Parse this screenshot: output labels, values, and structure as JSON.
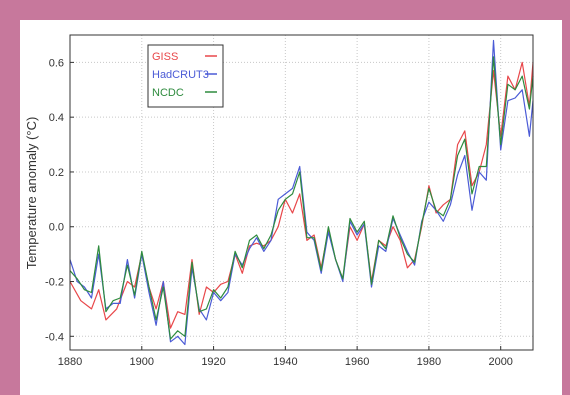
{
  "chart_data": {
    "type": "line",
    "title": "",
    "xlabel": "",
    "ylabel": "Temperature anomaly (°C)",
    "xlim": [
      1880,
      2009
    ],
    "ylim": [
      -0.45,
      0.7
    ],
    "xticks": [
      1880,
      1900,
      1920,
      1940,
      1960,
      1980,
      2000
    ],
    "yticks": [
      -0.4,
      -0.2,
      0.0,
      0.2,
      0.4,
      0.6
    ],
    "ytick_labels": [
      "-0.4",
      "-0.2",
      "0.0",
      "0.2",
      "0.4",
      "0.6"
    ],
    "grid": true,
    "legend_position": "top-left",
    "series": [
      {
        "name": "GISS",
        "color": "#e8474a",
        "x": [
          1880,
          1883,
          1886,
          1888,
          1890,
          1893,
          1896,
          1898,
          1900,
          1902,
          1904,
          1906,
          1908,
          1910,
          1912,
          1914,
          1916,
          1918,
          1920,
          1922,
          1924,
          1926,
          1928,
          1930,
          1932,
          1934,
          1936,
          1938,
          1940,
          1942,
          1944,
          1946,
          1948,
          1950,
          1952,
          1954,
          1956,
          1958,
          1960,
          1962,
          1964,
          1966,
          1968,
          1970,
          1972,
          1974,
          1976,
          1978,
          1980,
          1982,
          1984,
          1986,
          1988,
          1990,
          1992,
          1994,
          1996,
          1998,
          2000,
          2002,
          2004,
          2006,
          2008,
          2009
        ],
        "values": [
          -0.2,
          -0.27,
          -0.3,
          -0.23,
          -0.34,
          -0.3,
          -0.2,
          -0.22,
          -0.1,
          -0.22,
          -0.3,
          -0.2,
          -0.37,
          -0.31,
          -0.32,
          -0.12,
          -0.32,
          -0.22,
          -0.24,
          -0.21,
          -0.2,
          -0.1,
          -0.17,
          -0.07,
          -0.06,
          -0.07,
          -0.05,
          0.0,
          0.1,
          0.05,
          0.12,
          -0.05,
          -0.03,
          -0.15,
          -0.01,
          -0.12,
          -0.19,
          0.0,
          -0.05,
          0.01,
          -0.2,
          -0.05,
          -0.07,
          0.0,
          -0.05,
          -0.15,
          -0.12,
          0.0,
          0.15,
          0.05,
          0.08,
          0.1,
          0.3,
          0.35,
          0.15,
          0.2,
          0.3,
          0.57,
          0.33,
          0.55,
          0.5,
          0.6,
          0.44,
          0.6
        ]
      },
      {
        "name": "HadCRUT3",
        "color": "#4b5bd6",
        "x": [
          1880,
          1882,
          1884,
          1886,
          1888,
          1890,
          1892,
          1894,
          1896,
          1898,
          1900,
          1902,
          1904,
          1906,
          1908,
          1910,
          1912,
          1914,
          1916,
          1918,
          1920,
          1922,
          1924,
          1926,
          1928,
          1930,
          1932,
          1934,
          1936,
          1938,
          1940,
          1942,
          1944,
          1946,
          1948,
          1950,
          1952,
          1954,
          1956,
          1958,
          1960,
          1962,
          1964,
          1966,
          1968,
          1970,
          1972,
          1974,
          1976,
          1978,
          1980,
          1982,
          1984,
          1986,
          1988,
          1990,
          1992,
          1994,
          1996,
          1998,
          2000,
          2002,
          2004,
          2006,
          2008,
          2009
        ],
        "values": [
          -0.12,
          -0.2,
          -0.22,
          -0.26,
          -0.1,
          -0.3,
          -0.28,
          -0.28,
          -0.12,
          -0.26,
          -0.1,
          -0.24,
          -0.36,
          -0.2,
          -0.42,
          -0.4,
          -0.43,
          -0.15,
          -0.3,
          -0.34,
          -0.24,
          -0.27,
          -0.24,
          -0.1,
          -0.14,
          -0.08,
          -0.04,
          -0.09,
          -0.05,
          0.1,
          0.12,
          0.14,
          0.22,
          -0.02,
          -0.05,
          -0.17,
          -0.02,
          -0.12,
          -0.2,
          0.02,
          -0.03,
          0.01,
          -0.22,
          -0.07,
          -0.09,
          0.03,
          -0.03,
          -0.09,
          -0.14,
          0.02,
          0.09,
          0.06,
          0.02,
          0.08,
          0.19,
          0.26,
          0.06,
          0.2,
          0.17,
          0.68,
          0.28,
          0.46,
          0.47,
          0.5,
          0.33,
          0.46
        ]
      },
      {
        "name": "NCDC",
        "color": "#2e8b3e",
        "x": [
          1880,
          1882,
          1884,
          1886,
          1888,
          1890,
          1892,
          1894,
          1896,
          1898,
          1900,
          1902,
          1904,
          1906,
          1908,
          1910,
          1912,
          1914,
          1916,
          1918,
          1920,
          1922,
          1924,
          1926,
          1928,
          1930,
          1932,
          1934,
          1936,
          1938,
          1940,
          1942,
          1944,
          1946,
          1948,
          1950,
          1952,
          1954,
          1956,
          1958,
          1960,
          1962,
          1964,
          1966,
          1968,
          1970,
          1972,
          1974,
          1976,
          1978,
          1980,
          1982,
          1984,
          1986,
          1988,
          1990,
          1992,
          1994,
          1996,
          1998,
          2000,
          2002,
          2004,
          2006,
          2008,
          2009
        ],
        "values": [
          -0.16,
          -0.19,
          -0.23,
          -0.24,
          -0.07,
          -0.31,
          -0.27,
          -0.26,
          -0.14,
          -0.25,
          -0.09,
          -0.22,
          -0.34,
          -0.22,
          -0.41,
          -0.38,
          -0.4,
          -0.13,
          -0.31,
          -0.3,
          -0.23,
          -0.26,
          -0.22,
          -0.09,
          -0.15,
          -0.05,
          -0.03,
          -0.08,
          -0.03,
          0.06,
          0.1,
          0.12,
          0.2,
          -0.04,
          -0.04,
          -0.16,
          0.0,
          -0.12,
          -0.19,
          0.03,
          -0.02,
          0.02,
          -0.21,
          -0.05,
          -0.08,
          0.04,
          -0.04,
          -0.1,
          -0.13,
          0.01,
          0.14,
          0.06,
          0.04,
          0.1,
          0.26,
          0.32,
          0.12,
          0.22,
          0.22,
          0.62,
          0.3,
          0.52,
          0.5,
          0.55,
          0.43,
          0.55
        ]
      }
    ]
  }
}
